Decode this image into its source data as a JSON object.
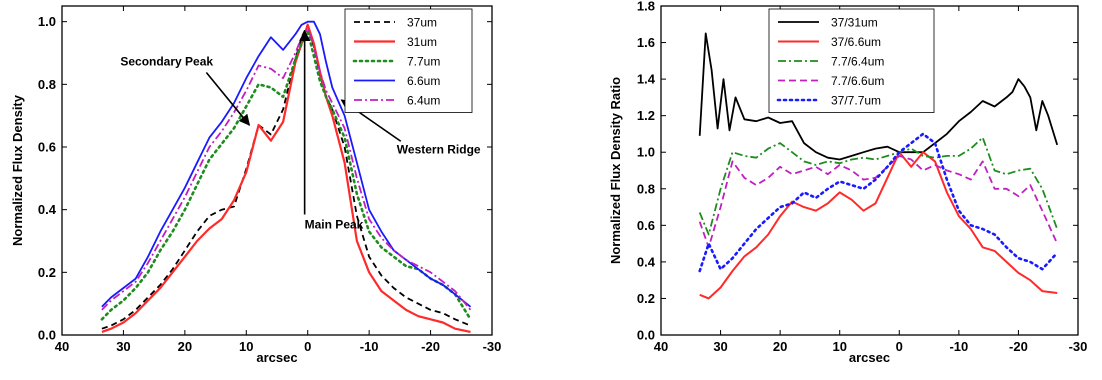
{
  "chart_data": [
    {
      "type": "line",
      "title": "",
      "xlabel": "arcsec",
      "ylabel": "Normalized Flux Density",
      "xlim": [
        40,
        -30
      ],
      "ylim": [
        0.0,
        1.05
      ],
      "xticks": [
        40,
        30,
        20,
        10,
        0,
        -10,
        -20,
        -30
      ],
      "xtick_labels": [
        "40",
        "30",
        "20",
        "10",
        "0",
        "-10",
        "-20",
        "-30"
      ],
      "yticks": [
        0.0,
        0.2,
        0.4,
        0.6,
        0.8,
        1.0
      ],
      "ytick_labels": [
        "0.0",
        "0.2",
        "0.4",
        "0.6",
        "0.8",
        "1.0"
      ],
      "grid": false,
      "legend_position": "top-right",
      "annotations": [
        {
          "text": "Secondary Peak",
          "x": 30.5,
          "y": 0.86,
          "arrow_to": [
            9.5,
            0.67
          ]
        },
        {
          "text": "Main Peak",
          "x": 0.5,
          "y": 0.34,
          "arrow_to": [
            0.5,
            0.97
          ]
        },
        {
          "text": "Western Ridge",
          "x": -14.5,
          "y": 0.58,
          "arrow_to": [
            -5.5,
            0.75
          ]
        }
      ],
      "series": [
        {
          "name": "37um",
          "color": "#000000",
          "dash": "6,4",
          "width": 1.8,
          "x": [
            33.5,
            32,
            30,
            28,
            26,
            24,
            22,
            20,
            18,
            16,
            14,
            12,
            10,
            8,
            6,
            4,
            2,
            1,
            0,
            -1,
            -2,
            -3,
            -4,
            -6,
            -8,
            -10,
            -12,
            -14,
            -16,
            -18,
            -20,
            -22,
            -24,
            -26.5
          ],
          "y": [
            0.02,
            0.03,
            0.05,
            0.08,
            0.12,
            0.16,
            0.21,
            0.27,
            0.33,
            0.38,
            0.4,
            0.41,
            0.53,
            0.67,
            0.64,
            0.72,
            0.88,
            0.95,
            0.99,
            0.92,
            0.83,
            0.76,
            0.72,
            0.6,
            0.38,
            0.25,
            0.19,
            0.15,
            0.12,
            0.1,
            0.08,
            0.07,
            0.05,
            0.03
          ]
        },
        {
          "name": "31um",
          "color": "#ff2a2a",
          "dash": "",
          "width": 2.2,
          "x": [
            33.5,
            32,
            30,
            28,
            26,
            24,
            22,
            20,
            18,
            16,
            14,
            12,
            10,
            8,
            6,
            4,
            2,
            1,
            0,
            -1,
            -2,
            -3,
            -4,
            -6,
            -8,
            -10,
            -12,
            -14,
            -16,
            -18,
            -20,
            -22,
            -24,
            -26.5
          ],
          "y": [
            0.01,
            0.02,
            0.04,
            0.07,
            0.11,
            0.15,
            0.2,
            0.25,
            0.3,
            0.34,
            0.37,
            0.43,
            0.52,
            0.67,
            0.62,
            0.68,
            0.87,
            0.93,
            0.99,
            0.93,
            0.84,
            0.76,
            0.7,
            0.55,
            0.3,
            0.2,
            0.14,
            0.11,
            0.08,
            0.06,
            0.05,
            0.04,
            0.02,
            0.01
          ]
        },
        {
          "name": "7.7um",
          "color": "#1e8c1e",
          "dash": "2,4",
          "width": 2.6,
          "x": [
            33.5,
            32,
            30,
            28,
            26,
            24,
            22,
            20,
            18,
            16,
            14,
            12,
            10,
            8,
            6,
            4,
            2,
            1,
            0,
            -1,
            -2,
            -3,
            -4,
            -6,
            -8,
            -10,
            -12,
            -14,
            -16,
            -18,
            -20,
            -22,
            -24,
            -26.5
          ],
          "y": [
            0.05,
            0.08,
            0.11,
            0.15,
            0.2,
            0.27,
            0.33,
            0.4,
            0.48,
            0.56,
            0.61,
            0.66,
            0.73,
            0.8,
            0.79,
            0.76,
            0.88,
            0.93,
            0.97,
            0.89,
            0.81,
            0.76,
            0.72,
            0.63,
            0.45,
            0.33,
            0.28,
            0.25,
            0.22,
            0.21,
            0.18,
            0.16,
            0.13,
            0.05
          ]
        },
        {
          "name": "6.6um",
          "color": "#1a1aff",
          "dash": "",
          "width": 1.8,
          "x": [
            33.5,
            32,
            30,
            28,
            26,
            24,
            22,
            20,
            18,
            16,
            14,
            12,
            10,
            8,
            6,
            4,
            2,
            1,
            0,
            -1,
            -2,
            -3,
            -4,
            -6,
            -8,
            -10,
            -12,
            -14,
            -16,
            -18,
            -20,
            -22,
            -24,
            -26.5
          ],
          "y": [
            0.09,
            0.12,
            0.15,
            0.18,
            0.25,
            0.33,
            0.4,
            0.47,
            0.55,
            0.63,
            0.68,
            0.74,
            0.82,
            0.89,
            0.95,
            0.91,
            0.96,
            0.99,
            1.0,
            1.0,
            0.96,
            0.87,
            0.79,
            0.7,
            0.55,
            0.4,
            0.33,
            0.27,
            0.24,
            0.21,
            0.18,
            0.16,
            0.13,
            0.09
          ]
        },
        {
          "name": "6.4um",
          "color": "#c020c0",
          "dash": "8,3,2,3",
          "width": 1.8,
          "x": [
            33.5,
            32,
            30,
            28,
            26,
            24,
            22,
            20,
            18,
            16,
            14,
            12,
            10,
            8,
            6,
            4,
            2,
            1,
            0,
            -1,
            -2,
            -3,
            -4,
            -6,
            -8,
            -10,
            -12,
            -14,
            -16,
            -18,
            -20,
            -22,
            -24,
            -26.5
          ],
          "y": [
            0.08,
            0.11,
            0.14,
            0.17,
            0.23,
            0.3,
            0.37,
            0.44,
            0.52,
            0.6,
            0.65,
            0.71,
            0.78,
            0.86,
            0.85,
            0.82,
            0.9,
            0.95,
            0.98,
            0.92,
            0.84,
            0.78,
            0.74,
            0.66,
            0.5,
            0.37,
            0.31,
            0.27,
            0.24,
            0.22,
            0.2,
            0.17,
            0.14,
            0.08
          ]
        }
      ]
    },
    {
      "type": "line",
      "title": "",
      "xlabel": "arcsec",
      "ylabel": "Normalized Flux Density Ratio",
      "xlim": [
        40,
        -30
      ],
      "ylim": [
        0.0,
        1.8
      ],
      "xticks": [
        40,
        30,
        20,
        10,
        0,
        -10,
        -20,
        -30
      ],
      "xtick_labels": [
        "40",
        "30",
        "20",
        "10",
        "0",
        "-10",
        "-20",
        "-30"
      ],
      "yticks": [
        0.0,
        0.2,
        0.4,
        0.6,
        0.8,
        1.0,
        1.2,
        1.4,
        1.6,
        1.8
      ],
      "ytick_labels": [
        "0.0",
        "0.2",
        "0.4",
        "0.6",
        "0.8",
        "1.0",
        "1.2",
        "1.4",
        "1.6",
        "1.8"
      ],
      "grid": false,
      "legend_position": "top-center",
      "series": [
        {
          "name": "37/31um",
          "color": "#000000",
          "dash": "",
          "width": 1.8,
          "x": [
            33.5,
            32.5,
            31.5,
            30.5,
            29.5,
            28.5,
            27.5,
            26,
            24,
            22,
            20,
            18,
            16,
            14,
            12,
            10,
            8,
            6,
            4,
            2,
            0,
            -2,
            -4,
            -6,
            -8,
            -10,
            -12,
            -14,
            -16,
            -18,
            -19,
            -20,
            -21,
            -22,
            -23,
            -24,
            -25,
            -26.5
          ],
          "y": [
            1.09,
            1.65,
            1.45,
            1.13,
            1.4,
            1.12,
            1.3,
            1.18,
            1.17,
            1.19,
            1.16,
            1.17,
            1.05,
            1.0,
            0.97,
            0.96,
            0.98,
            1.0,
            1.02,
            1.03,
            1.0,
            1.0,
            1.0,
            1.05,
            1.1,
            1.17,
            1.22,
            1.28,
            1.25,
            1.3,
            1.33,
            1.4,
            1.36,
            1.3,
            1.12,
            1.28,
            1.2,
            1.04
          ]
        },
        {
          "name": "37/6.6um",
          "color": "#ff2a2a",
          "dash": "",
          "width": 2.0,
          "x": [
            33.5,
            32,
            30,
            28,
            26,
            24,
            22,
            20,
            18,
            16,
            14,
            12,
            10,
            8,
            6,
            4,
            2,
            0,
            -2,
            -4,
            -6,
            -8,
            -10,
            -12,
            -14,
            -16,
            -18,
            -20,
            -22,
            -24,
            -26.5
          ],
          "y": [
            0.22,
            0.2,
            0.26,
            0.35,
            0.43,
            0.48,
            0.55,
            0.65,
            0.73,
            0.7,
            0.68,
            0.72,
            0.78,
            0.74,
            0.68,
            0.72,
            0.86,
            1.0,
            0.92,
            1.0,
            0.95,
            0.78,
            0.65,
            0.58,
            0.48,
            0.46,
            0.4,
            0.34,
            0.3,
            0.24,
            0.23
          ]
        },
        {
          "name": "7.7/6.4um",
          "color": "#1e8c1e",
          "dash": "8,3,2,3",
          "width": 1.8,
          "x": [
            33.5,
            32,
            30,
            28,
            26,
            24,
            22,
            20,
            18,
            16,
            14,
            12,
            10,
            8,
            6,
            4,
            2,
            0,
            -2,
            -4,
            -6,
            -8,
            -10,
            -12,
            -14,
            -16,
            -18,
            -20,
            -22,
            -24,
            -26.5
          ],
          "y": [
            0.67,
            0.55,
            0.8,
            1.0,
            0.98,
            0.97,
            1.02,
            1.05,
            1.0,
            0.95,
            0.93,
            0.95,
            0.94,
            0.96,
            0.97,
            0.96,
            0.98,
            1.0,
            1.02,
            0.98,
            0.97,
            0.98,
            0.98,
            1.02,
            1.08,
            0.9,
            0.88,
            0.9,
            0.91,
            0.8,
            0.58
          ]
        },
        {
          "name": "7.7/6.6um",
          "color": "#c020c0",
          "dash": "7,4",
          "width": 1.8,
          "x": [
            33.5,
            32,
            30,
            28,
            26,
            24,
            22,
            20,
            18,
            16,
            14,
            12,
            10,
            8,
            6,
            4,
            2,
            0,
            -2,
            -4,
            -6,
            -8,
            -10,
            -12,
            -14,
            -16,
            -18,
            -20,
            -22,
            -24,
            -26.5
          ],
          "y": [
            0.62,
            0.48,
            0.7,
            0.95,
            0.86,
            0.82,
            0.86,
            0.92,
            0.88,
            0.9,
            0.92,
            0.88,
            0.93,
            0.9,
            0.85,
            0.86,
            0.92,
            0.98,
            0.96,
            0.9,
            0.93,
            0.9,
            0.88,
            0.85,
            0.95,
            0.8,
            0.8,
            0.76,
            0.82,
            0.68,
            0.5
          ]
        },
        {
          "name": "37/7.7um",
          "color": "#1a1aff",
          "dash": "2,4",
          "width": 2.6,
          "x": [
            33.5,
            32,
            30,
            28,
            26,
            24,
            22,
            20,
            18,
            16,
            14,
            12,
            10,
            8,
            6,
            4,
            2,
            0,
            -2,
            -4,
            -6,
            -8,
            -10,
            -12,
            -14,
            -16,
            -18,
            -20,
            -22,
            -24,
            -26.5
          ],
          "y": [
            0.35,
            0.5,
            0.36,
            0.42,
            0.5,
            0.58,
            0.64,
            0.7,
            0.72,
            0.78,
            0.75,
            0.8,
            0.84,
            0.82,
            0.8,
            0.85,
            0.92,
            1.0,
            1.05,
            1.1,
            1.05,
            0.85,
            0.68,
            0.6,
            0.58,
            0.55,
            0.48,
            0.42,
            0.4,
            0.36,
            0.45
          ]
        }
      ]
    }
  ]
}
